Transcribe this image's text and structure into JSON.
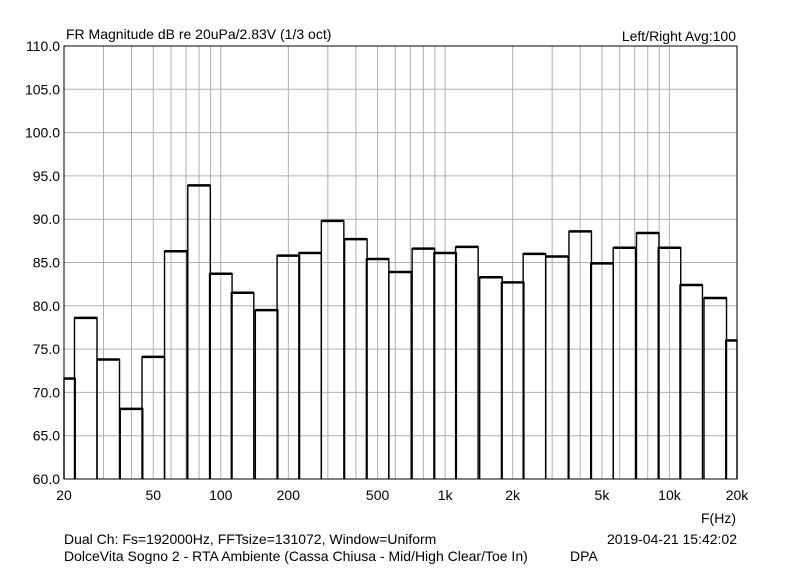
{
  "header": {
    "title": "FR Magnitude dB re 20uPa/2.83V (1/3 oct)",
    "right_label": "Left/Right  Avg:100"
  },
  "footer": {
    "line1": "Dual Ch: Fs=192000Hz, FFTsize=131072, Window=Uniform",
    "timestamp": "2019-04-21  15:42:02",
    "line2": "DolceVita Sogno 2 - RTA Ambiente (Cassa Chiusa - Mid/High Clear/Toe In)",
    "tag": "DPA"
  },
  "chart_data": {
    "type": "bar",
    "title": "FR Magnitude dB re 20uPa/2.83V (1/3 oct)",
    "xlabel": "F(Hz)",
    "ylabel": "",
    "x_scale": "log",
    "xlim": [
      20,
      20000
    ],
    "ylim": [
      60,
      110
    ],
    "grid": true,
    "x_ticks": [
      {
        "value": 20,
        "label": "20"
      },
      {
        "value": 50,
        "label": "50"
      },
      {
        "value": 100,
        "label": "100"
      },
      {
        "value": 200,
        "label": "200"
      },
      {
        "value": 500,
        "label": "500"
      },
      {
        "value": 1000,
        "label": "1k"
      },
      {
        "value": 2000,
        "label": "2k"
      },
      {
        "value": 5000,
        "label": "5k"
      },
      {
        "value": 10000,
        "label": "10k"
      },
      {
        "value": 20000,
        "label": "20k"
      }
    ],
    "y_ticks": [
      {
        "value": 60,
        "label": "60.0"
      },
      {
        "value": 65,
        "label": "65.0"
      },
      {
        "value": 70,
        "label": "70.0"
      },
      {
        "value": 75,
        "label": "75.0"
      },
      {
        "value": 80,
        "label": "80.0"
      },
      {
        "value": 85,
        "label": "85.0"
      },
      {
        "value": 90,
        "label": "90.0"
      },
      {
        "value": 95,
        "label": "95.0"
      },
      {
        "value": 100,
        "label": "100.0"
      },
      {
        "value": 105,
        "label": "105.0"
      },
      {
        "value": 110,
        "label": "110.0"
      }
    ],
    "categories": [
      20,
      25,
      31.5,
      40,
      50,
      63,
      80,
      100,
      125,
      160,
      200,
      250,
      315,
      400,
      500,
      630,
      800,
      1000,
      1250,
      1600,
      2000,
      2500,
      3150,
      4000,
      5000,
      6300,
      8000,
      10000,
      12500,
      16000,
      20000
    ],
    "values": [
      71.6,
      78.6,
      73.8,
      68.1,
      74.1,
      86.3,
      93.9,
      83.7,
      81.5,
      79.5,
      85.8,
      86.1,
      89.8,
      87.7,
      85.4,
      83.9,
      86.6,
      86.1,
      86.8,
      83.3,
      82.7,
      86.0,
      85.7,
      88.6,
      84.9,
      86.7,
      88.4,
      86.7,
      82.4,
      80.9,
      76.0
    ],
    "colors": {
      "bar_outline": "#000000",
      "grid": "#b0b0b0",
      "background": "#ffffff"
    }
  }
}
